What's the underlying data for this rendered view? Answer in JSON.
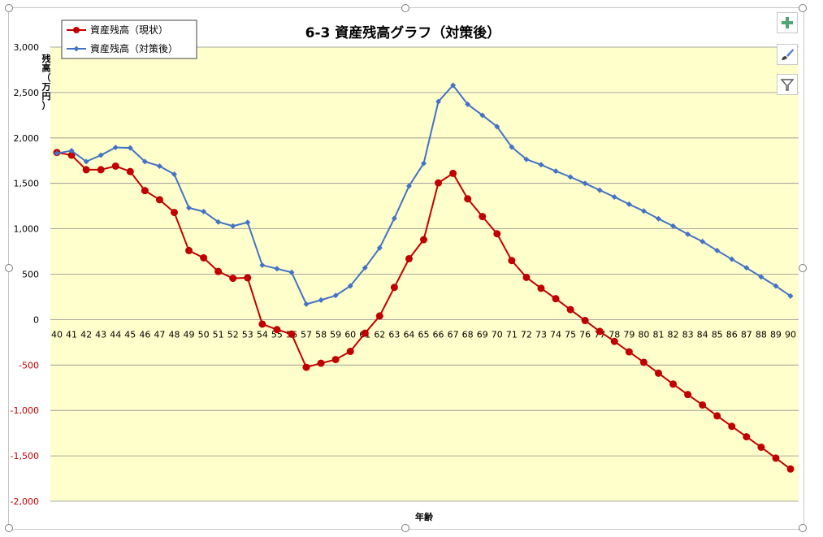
{
  "chart_data": {
    "type": "line",
    "title": "6-3 資産残高グラフ（対策後）",
    "xlabel": "年齢",
    "ylabel": "残高（万円）",
    "categories": [
      "40",
      "41",
      "42",
      "43",
      "44",
      "45",
      "46",
      "47",
      "48",
      "49",
      "50",
      "51",
      "52",
      "53",
      "54",
      "55",
      "56",
      "57",
      "58",
      "59",
      "60",
      "61",
      "62",
      "63",
      "64",
      "65",
      "66",
      "67",
      "68",
      "69",
      "70",
      "71",
      "72",
      "73",
      "74",
      "75",
      "76",
      "77",
      "78",
      "79",
      "80",
      "81",
      "82",
      "83",
      "84",
      "85",
      "86",
      "87",
      "88",
      "89",
      "90"
    ],
    "yticks": [
      "3,000",
      "2,500",
      "2,000",
      "1,500",
      "1,000",
      "500",
      "0",
      "-500",
      "-1,000",
      "-1,500",
      "-2,000"
    ],
    "ylim": [
      -2000,
      3000
    ],
    "grid": true,
    "legend": "top-left",
    "series": [
      {
        "name": "資産残高（現状）",
        "color": "#c00000",
        "marker": "circle",
        "values": [
          1840,
          1810,
          1650,
          1650,
          1690,
          1630,
          1420,
          1320,
          1180,
          760,
          680,
          530,
          455,
          460,
          -50,
          -110,
          -160,
          -525,
          -480,
          -440,
          -350,
          -150,
          40,
          355,
          670,
          880,
          1505,
          1610,
          1330,
          1135,
          945,
          650,
          465,
          345,
          230,
          110,
          -10,
          -130,
          -240,
          -355,
          -470,
          -590,
          -710,
          -825,
          -940,
          -1060,
          -1175,
          -1290,
          -1405,
          -1525,
          -1645
        ]
      },
      {
        "name": "資産残高（対策後）",
        "color": "#4472c4",
        "marker": "diamond",
        "values": [
          1830,
          1860,
          1740,
          1810,
          1895,
          1890,
          1740,
          1690,
          1600,
          1230,
          1190,
          1075,
          1030,
          1070,
          600,
          560,
          520,
          170,
          215,
          265,
          370,
          570,
          790,
          1115,
          1470,
          1720,
          2400,
          2580,
          2370,
          2250,
          2125,
          1900,
          1765,
          1705,
          1635,
          1570,
          1500,
          1425,
          1350,
          1270,
          1195,
          1110,
          1030,
          940,
          860,
          760,
          665,
          570,
          470,
          370,
          260
        ]
      }
    ]
  },
  "toolbar": {
    "add_icon": "plus-icon",
    "style_icon": "brush-icon",
    "filter_icon": "filter-icon"
  },
  "colors": {
    "plot_bg": "#ffffcc",
    "grid": "#8c8c8c",
    "negative_tick": "#c00000"
  }
}
